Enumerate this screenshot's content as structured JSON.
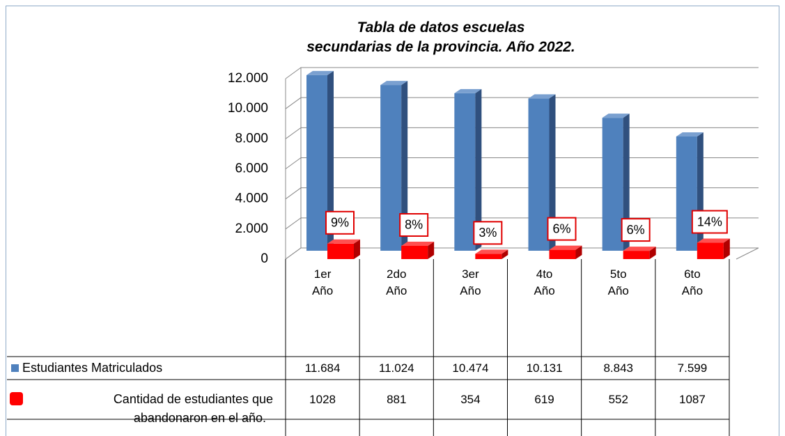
{
  "chart_data": {
    "type": "bar3d",
    "title": "Tabla de datos escuelas secundarias de la provincia. Año 2022.",
    "categories": [
      "1er Año",
      "2do Año",
      "3er Año",
      "4to Año",
      "5to Año",
      "6to Año"
    ],
    "series": [
      {
        "name": "Estudiantes Matriculados",
        "color": "#4f81bd",
        "values": [
          11684,
          11024,
          10474,
          10131,
          8843,
          7599
        ],
        "value_labels": [
          "11.684",
          "11.024",
          "10.474",
          "10.131",
          "8.843",
          "7.599"
        ]
      },
      {
        "name": "Cantidad de estudiantes que abandonaron en el año.",
        "color": "#ff0000",
        "values": [
          1028,
          881,
          354,
          619,
          552,
          1087
        ]
      }
    ],
    "annotations": [
      "9%",
      "8%",
      "3%",
      "6%",
      "6%",
      "14%"
    ],
    "ylim": [
      0,
      12000
    ],
    "yticks": [
      0,
      {
        "value": 2000,
        "label": "2.000"
      },
      {
        "value": 4000,
        "label": "4.000"
      },
      {
        "value": 6000,
        "label": "6.000"
      },
      {
        "value": 8000,
        "label": "8.000"
      },
      {
        "value": 10000,
        "label": "10.000"
      },
      {
        "value": 12000,
        "label": "12.000"
      }
    ],
    "grid": true
  }
}
